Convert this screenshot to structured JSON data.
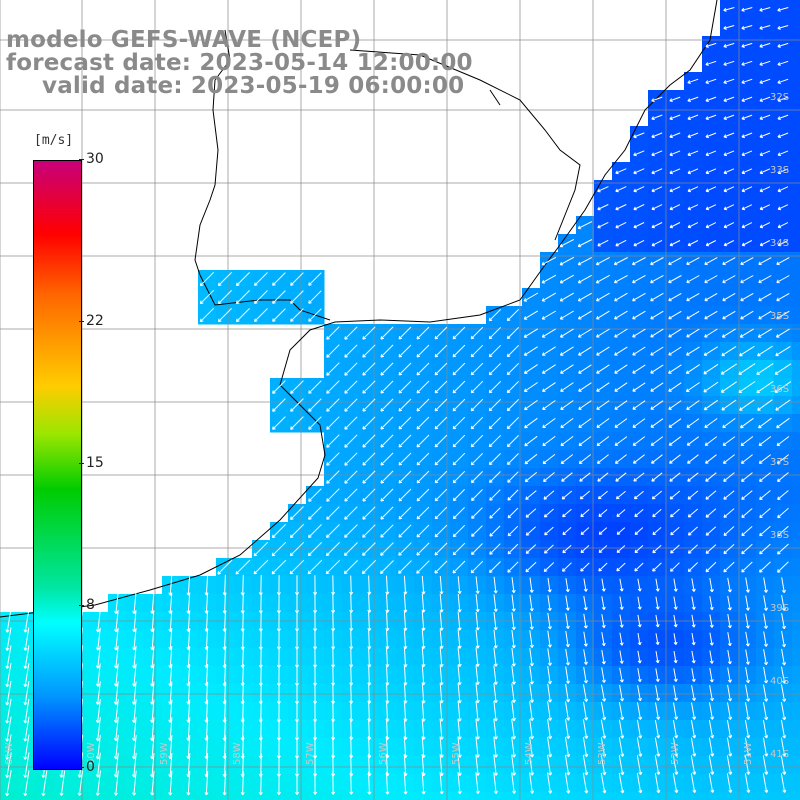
{
  "title": {
    "line1": "modelo GEFS-WAVE (NCEP)",
    "line2": "forecast date: 2023-05-14 12:00:00",
    "line3": "valid date: 2023-05-19 06:00:00"
  },
  "colorbar": {
    "units": "[m/s]",
    "ticks": [
      {
        "label": "30",
        "value": 30
      },
      {
        "label": "22",
        "value": 22
      },
      {
        "label": "15",
        "value": 15
      },
      {
        "label": "8",
        "value": 8
      },
      {
        "label": "0",
        "value": 0
      }
    ],
    "range": [
      0,
      30
    ]
  },
  "map": {
    "lat_labels": [
      "32S",
      "33S",
      "34S",
      "35S",
      "36S",
      "37S",
      "38S",
      "39S",
      "40S",
      "41S"
    ],
    "lon_labels": [
      "61W",
      "60W",
      "59W",
      "58W",
      "57W",
      "56W",
      "55W",
      "54W",
      "53W",
      "52W",
      "51W"
    ],
    "colors": {
      "land": "#ffffff",
      "coast": "#000000",
      "grid": "#888888",
      "arrow": "#ffffff"
    }
  }
}
